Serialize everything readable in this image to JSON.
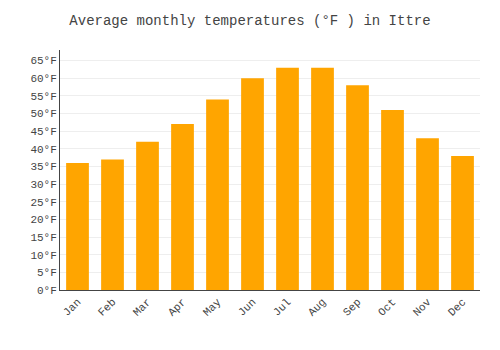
{
  "chart_data": {
    "type": "bar",
    "title": "Average monthly temperatures (°F ) in Ittre",
    "categories": [
      "Jan",
      "Feb",
      "Mar",
      "Apr",
      "May",
      "Jun",
      "Jul",
      "Aug",
      "Sep",
      "Oct",
      "Nov",
      "Dec"
    ],
    "values": [
      36,
      37,
      42,
      47,
      54,
      60,
      63,
      63,
      58,
      51,
      43,
      38
    ],
    "color": "#FFA500",
    "ylim": [
      0,
      68
    ],
    "yticks": [
      {
        "value": 0,
        "label": "0°F"
      },
      {
        "value": 5,
        "label": "5°F"
      },
      {
        "value": 10,
        "label": "10°F"
      },
      {
        "value": 15,
        "label": "15°F"
      },
      {
        "value": 20,
        "label": "20°F"
      },
      {
        "value": 25,
        "label": "25°F"
      },
      {
        "value": 30,
        "label": "30°F"
      },
      {
        "value": 35,
        "label": "35°F"
      },
      {
        "value": 40,
        "label": "40°F"
      },
      {
        "value": 45,
        "label": "45°F"
      },
      {
        "value": 50,
        "label": "50°F"
      },
      {
        "value": 55,
        "label": "55°F"
      },
      {
        "value": 60,
        "label": "60°F"
      },
      {
        "value": 65,
        "label": "65°F"
      }
    ],
    "grid": true
  }
}
